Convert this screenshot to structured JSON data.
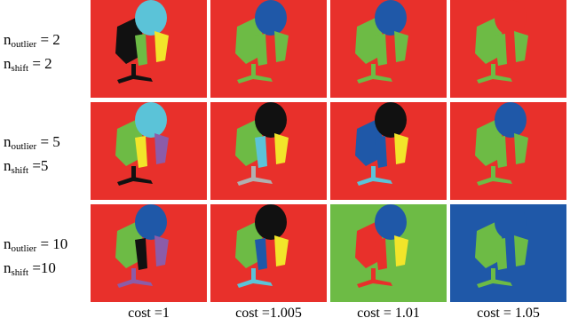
{
  "rows": [
    {
      "lines": [
        {
          "base": "n",
          "sub": "outlier",
          "tail": " = 2"
        },
        {
          "base": "n",
          "sub": "shift",
          "tail": " = 2"
        }
      ]
    },
    {
      "lines": [
        {
          "base": "n",
          "sub": "outlier",
          "tail": " = 5"
        },
        {
          "base": "n",
          "sub": "shift",
          "tail": " =5"
        }
      ]
    },
    {
      "lines": [
        {
          "base": "n",
          "sub": "outlier",
          "tail": " = 10"
        },
        {
          "base": "n",
          "sub": "shift",
          "tail": " =10"
        }
      ]
    }
  ],
  "columns": [
    "cost =1",
    "cost =1.005",
    "cost = 1.01",
    "cost = 1.05"
  ]
}
